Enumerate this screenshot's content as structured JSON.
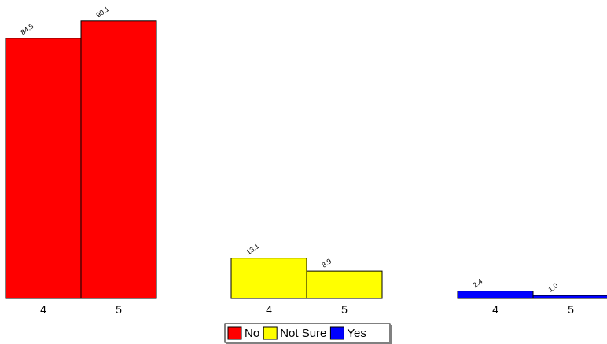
{
  "chart_data": {
    "type": "bar",
    "groups": [
      {
        "name": "No",
        "color": "#ff0000",
        "bars": [
          {
            "category": "4",
            "value": 84.5,
            "label": "84.5"
          },
          {
            "category": "5",
            "value": 90.1,
            "label": "90.1"
          }
        ]
      },
      {
        "name": "Not Sure",
        "color": "#ffff00",
        "bars": [
          {
            "category": "4",
            "value": 13.1,
            "label": "13.1"
          },
          {
            "category": "5",
            "value": 8.9,
            "label": "8.9"
          }
        ]
      },
      {
        "name": "Yes",
        "color": "#0000ff",
        "bars": [
          {
            "category": "4",
            "value": 2.4,
            "label": "2.4"
          },
          {
            "category": "5",
            "value": 1.0,
            "label": "1.0"
          }
        ]
      }
    ],
    "legend": {
      "position": "bottom-center",
      "entries": [
        {
          "name": "No",
          "color": "#ff0000"
        },
        {
          "name": "Not Sure",
          "color": "#ffff00"
        },
        {
          "name": "Yes",
          "color": "#0000ff"
        }
      ]
    },
    "value_label_rotation": "diagonal",
    "grid": false,
    "ylim": [
      0,
      100
    ]
  }
}
